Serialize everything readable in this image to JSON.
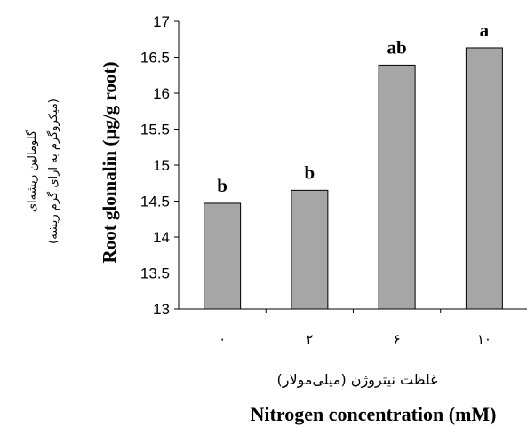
{
  "chart_data": {
    "type": "bar",
    "categories": [
      "۰",
      "۲",
      "۶",
      "۱۰"
    ],
    "values": [
      14.47,
      14.65,
      16.39,
      16.63
    ],
    "significance_letters": [
      "b",
      "b",
      "ab",
      "a"
    ],
    "ylim": [
      13,
      17
    ],
    "yticks": [
      13,
      13.5,
      14,
      14.5,
      15,
      15.5,
      16,
      16.5,
      17
    ],
    "ylabel": "Root glomalin (µg/g root)",
    "ylabel_fa_line1": "گلومالین ریشه‌ای",
    "ylabel_fa_line2": "(میکروگرم به ازای گرم ریشه)",
    "xlabel_fa": "غلظت نیتروژن (میلی‌مولار)",
    "xlabel": "Nitrogen concentration (mM)",
    "bar_color": "#a6a6a6",
    "grid": false,
    "legend": "none"
  }
}
